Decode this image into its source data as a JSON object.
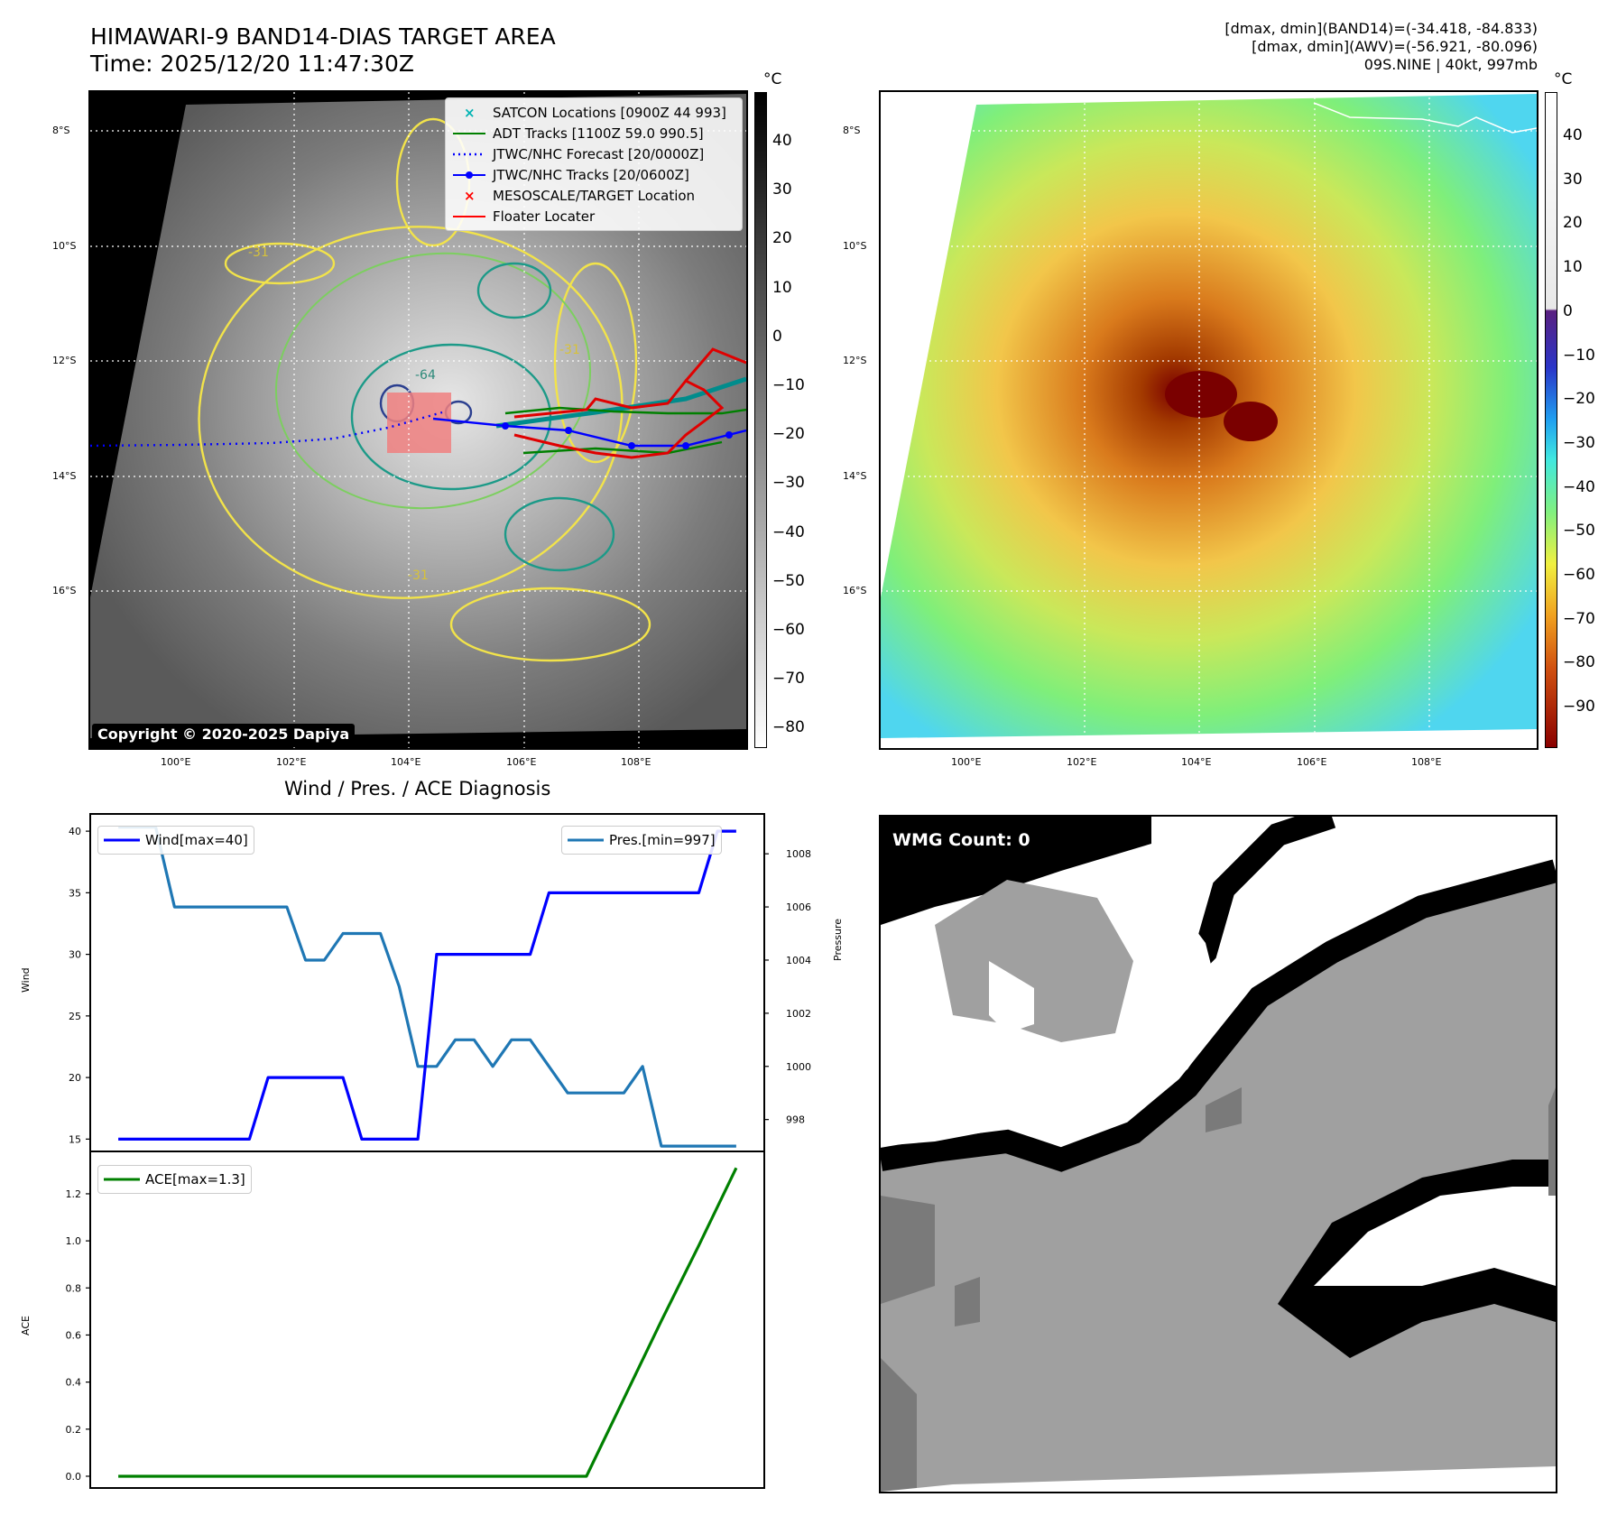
{
  "header": {
    "title": "HIMAWARI-9 BAND14-DIAS TARGET AREA",
    "time": "Time: 2025/12/20 11:47:30Z",
    "stats_band14": "[dmax, dmin](BAND14)=(-34.418, -84.833)",
    "stats_awv": "[dmax, dmin](AWV)=(-56.921, -80.096)",
    "storm": "09S.NINE | 40kt, 997mb"
  },
  "map_axes": {
    "lat_labels": [
      "8°S",
      "10°S",
      "12°S",
      "14°S",
      "16°S"
    ],
    "lon_labels": [
      "100°E",
      "102°E",
      "104°E",
      "106°E",
      "108°E"
    ]
  },
  "ir_panel": {
    "copyright": "Copyright © 2020-2025 Dapiya",
    "unit": "°C",
    "colorbar_ticks": [
      "40",
      "30",
      "20",
      "10",
      "0",
      "−10",
      "−20",
      "−30",
      "−40",
      "−50",
      "−60",
      "−70",
      "−80"
    ],
    "contour_labels": [
      "-31",
      "-64",
      "-31",
      "-31"
    ],
    "legend": [
      {
        "label": "SATCON Locations [0900Z 44 993]",
        "color": "#00b3b3",
        "symbol": "x"
      },
      {
        "label": "ADT Tracks [1100Z 59.0 990.5]",
        "color": "#008000",
        "symbol": "line"
      },
      {
        "label": "JTWC/NHC Forecast [20/0000Z]",
        "color": "#0000ff",
        "symbol": "dotted"
      },
      {
        "label": "JTWC/NHC Tracks [20/0600Z]",
        "color": "#0000ff",
        "symbol": "line-dot"
      },
      {
        "label": "MESOSCALE/TARGET Location",
        "color": "#ff0000",
        "symbol": "x"
      },
      {
        "label": "Floater Locater",
        "color": "#ff0000",
        "symbol": "line"
      }
    ]
  },
  "color_panel": {
    "unit": "°C",
    "colorbar_ticks": [
      "40",
      "30",
      "20",
      "10",
      "0",
      "−10",
      "−20",
      "−30",
      "−40",
      "−50",
      "−60",
      "−70",
      "−80",
      "−90"
    ]
  },
  "diagnosis": {
    "title": "Wind / Pres. / ACE Diagnosis",
    "wind_axis_label": "Wind",
    "pres_axis_label": "Pressure",
    "ace_axis_label": "ACE",
    "wind_legend": "Wind[max=40]",
    "pres_legend": "Pres.[min=997]",
    "ace_legend": "ACE[max=1.3]",
    "wind_ticks": [
      "40",
      "35",
      "30",
      "25",
      "20",
      "15"
    ],
    "pres_ticks": [
      "1008",
      "1006",
      "1004",
      "1002",
      "1000",
      "998"
    ],
    "ace_ticks": [
      "1.2",
      "1.0",
      "0.8",
      "0.6",
      "0.4",
      "0.2",
      "0.0"
    ]
  },
  "wmg_panel": {
    "badge": "WMG Count: 0"
  },
  "chart_data": [
    {
      "type": "line",
      "name": "wind",
      "x": [
        0,
        1,
        2,
        3,
        4,
        5,
        6,
        7,
        8,
        9,
        10,
        11,
        12,
        13,
        14,
        15,
        16,
        17,
        18,
        19,
        20,
        21,
        22,
        23,
        24,
        25,
        26,
        27,
        28,
        29,
        30,
        31,
        32,
        33
      ],
      "series": [
        {
          "name": "Wind[max=40]",
          "color": "#0000ff",
          "values": [
            15,
            15,
            15,
            15,
            15,
            15,
            15,
            15,
            20,
            20,
            20,
            20,
            20,
            15,
            15,
            15,
            15,
            30,
            30,
            30,
            30,
            30,
            30,
            35,
            35,
            35,
            35,
            35,
            35,
            35,
            35,
            35,
            40,
            40
          ]
        }
      ],
      "ylim": [
        14,
        41.4
      ]
    },
    {
      "type": "line",
      "name": "pressure",
      "x": [
        0,
        2,
        3,
        9,
        10,
        11,
        12,
        13,
        14,
        15,
        16,
        17,
        18,
        19,
        20,
        21,
        22,
        23,
        24,
        25,
        26,
        27,
        28,
        29,
        30,
        31,
        32,
        33
      ],
      "series": [
        {
          "name": "Pres.[min=997]",
          "color": "#1f77b4",
          "values": [
            1009,
            1009,
            1006,
            1006,
            1004,
            1004,
            1005,
            1005,
            1005,
            1003,
            1000,
            1000,
            1001,
            1001,
            1000,
            1001,
            1001,
            1000,
            999,
            999,
            999,
            999,
            1000,
            997,
            997,
            997,
            997,
            997
          ]
        }
      ],
      "ylim": [
        996.8,
        1009.5
      ]
    },
    {
      "type": "line",
      "name": "ace",
      "x": [
        0,
        25,
        27,
        29,
        31,
        33
      ],
      "series": [
        {
          "name": "ACE[max=1.3]",
          "color": "#008000",
          "values": [
            0,
            0,
            0.33,
            0.66,
            0.98,
            1.31
          ]
        }
      ],
      "ylim": [
        -0.05,
        1.38
      ]
    }
  ]
}
